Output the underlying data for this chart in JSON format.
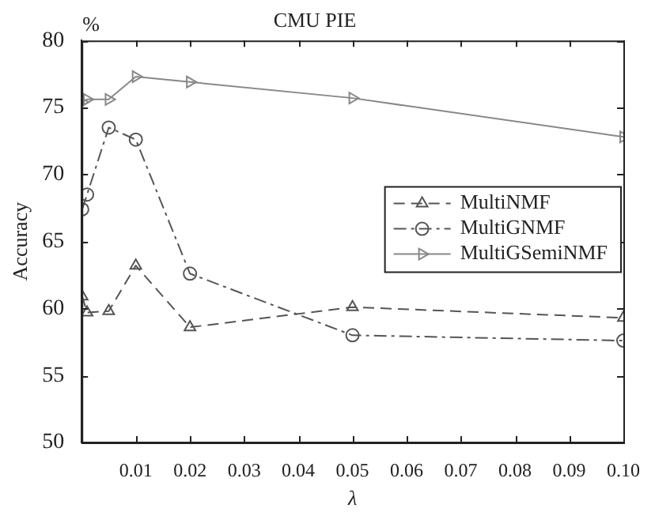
{
  "chart_data": {
    "type": "line",
    "title": "CMU PIE",
    "xlabel": "λ",
    "ylabel": "Accuracy",
    "annotations": [
      "%"
    ],
    "x": [
      0.0001,
      0.001,
      0.005,
      0.01,
      0.02,
      0.05,
      0.1
    ],
    "series": [
      {
        "name": "MultiNMF",
        "color": "#555555",
        "marker": "triangle",
        "line_style": "dashed",
        "values": [
          60.9,
          59.7,
          59.8,
          63.2,
          58.6,
          60.1,
          59.3
        ]
      },
      {
        "name": "MultiGNMF",
        "color": "#555555",
        "marker": "circle",
        "line_style": "dashdot",
        "values": [
          67.4,
          68.5,
          73.5,
          72.6,
          62.6,
          58.0,
          57.6
        ]
      },
      {
        "name": "MultiGSemiNMF",
        "color": "#888888",
        "marker": "triangle-right",
        "line_style": "solid",
        "values": [
          75.4,
          75.6,
          75.6,
          77.3,
          76.9,
          75.7,
          72.8
        ]
      }
    ],
    "xlim": [
      0,
      0.1
    ],
    "xticks": [
      0.01,
      0.02,
      0.03,
      0.04,
      0.05,
      0.06,
      0.07,
      0.08,
      0.09,
      {
        "value": 0.1,
        "label": "0.10"
      }
    ],
    "ylim": [
      50,
      80
    ],
    "yticks": [
      50,
      55,
      60,
      65,
      70,
      75,
      80
    ],
    "grid": false,
    "legend": "right"
  }
}
